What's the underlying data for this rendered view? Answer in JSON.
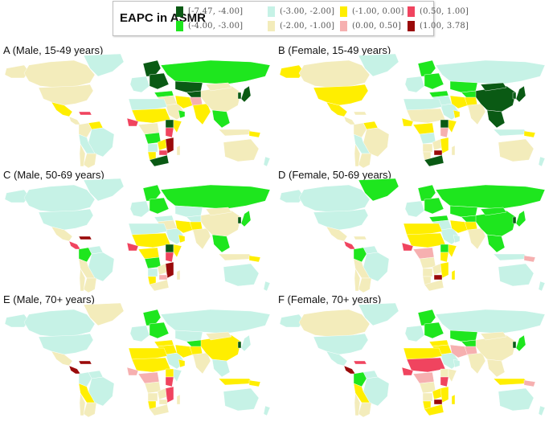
{
  "legend": {
    "title": "EAPC in ASMR",
    "items": [
      {
        "label": "[-7.47, -4.00]",
        "color": "#0a5a14"
      },
      {
        "label": "(-4.00, -3.00]",
        "color": "#1ee61e"
      },
      {
        "label": "(-3.00, -2.00]",
        "color": "#c6f2e6"
      },
      {
        "label": "(-2.00, -1.00]",
        "color": "#f3ecbb"
      },
      {
        "label": "(-1.00, 0.00]",
        "color": "#ffee00"
      },
      {
        "label": "(0.00, 0.50]",
        "color": "#f6b0b0"
      },
      {
        "label": "(0.50, 1.00]",
        "color": "#f0445f"
      },
      {
        "label": "(1.00, 3.78]",
        "color": "#9a0a0a"
      }
    ]
  },
  "panels": [
    {
      "id": "A",
      "label": "A (Male, 15-49  years)"
    },
    {
      "id": "B",
      "label": "B (Female, 15-49  years)"
    },
    {
      "id": "C",
      "label": "C (Male, 50-69  years)"
    },
    {
      "id": "D",
      "label": "D (Female, 50-69  years)"
    },
    {
      "id": "E",
      "label": "E (Male, 70+  years)"
    },
    {
      "id": "F",
      "label": "F (Female, 70+  years)"
    }
  ],
  "chart_data": {
    "type": "heatmap",
    "subtype": "choropleth-world-map",
    "title": "EAPC in ASMR",
    "legend_bins": [
      "[-7.47, -4.00]",
      "(-4.00, -3.00]",
      "(-3.00, -2.00]",
      "(-2.00, -1.00]",
      "(-1.00, 0.00]",
      "(0.00, 0.50]",
      "(0.50, 1.00]",
      "(1.00, 3.78]"
    ],
    "range": [
      -7.47,
      3.78
    ],
    "panels": [
      {
        "label": "A (Male, 15-49  years)",
        "regions": {
          "canada": 3,
          "alaska": 3,
          "usa": 3,
          "greenland": 2,
          "mexico": 4,
          "central_america": 3,
          "caribbean": 6,
          "venezuela": 4,
          "colombia": 3,
          "brazil": 2,
          "peru_bolivia": 2,
          "argentina": 3,
          "chile": 3,
          "west_europe": 2,
          "scandinavia": 0,
          "east_europe": 0,
          "russia": 1,
          "kazakhstan": 0,
          "central_asia": 0,
          "turkey": 1,
          "middle_east": 3,
          "arabia": 3,
          "oman": 1,
          "iran": 4,
          "pakistan_afghan": 5,
          "india": 4,
          "china": 3,
          "mongolia": 3,
          "japan": 0,
          "korea": 0,
          "se_asia": 1,
          "indonesia": 3,
          "png": 4,
          "australia": 3,
          "nz": 2,
          "north_africa": 2,
          "sahel": 4,
          "west_africa_coast": 6,
          "central_africa": 3,
          "ethiopia": 0,
          "horn": 4,
          "kenya": 6,
          "congo": 1,
          "angola": 2,
          "zambia": 4,
          "namibia": 4,
          "mozambique": 7,
          "zimbabwe": 6,
          "south_africa": 0,
          "madagascar": 3
        }
      },
      {
        "label": "B (Female, 15-49  years)",
        "regions": {
          "canada": 3,
          "alaska": 4,
          "usa": 4,
          "greenland": 2,
          "mexico": 4,
          "central_america": 3,
          "caribbean": 3,
          "venezuela": 4,
          "colombia": 3,
          "brazil": 3,
          "peru_bolivia": 2,
          "argentina": 3,
          "chile": 3,
          "west_europe": 2,
          "scandinavia": 1,
          "east_europe": 1,
          "russia": 2,
          "kazakhstan": 1,
          "central_asia": 1,
          "turkey": 1,
          "middle_east": 2,
          "arabia": 2,
          "oman": 4,
          "iran": 4,
          "pakistan_afghan": 4,
          "india": 3,
          "china": 0,
          "mongolia": 0,
          "japan": 0,
          "korea": 0,
          "se_asia": 0,
          "indonesia": 2,
          "png": 4,
          "australia": 3,
          "nz": 2,
          "north_africa": 2,
          "sahel": 3,
          "west_africa_coast": 4,
          "central_africa": 4,
          "ethiopia": 0,
          "horn": 4,
          "kenya": 5,
          "congo": 2,
          "angola": 3,
          "zambia": 3,
          "namibia": 3,
          "mozambique": 4,
          "zimbabwe": 7,
          "south_africa": 0,
          "madagascar": 3
        }
      },
      {
        "label": "C (Male, 50-69  years)",
        "regions": {
          "canada": 2,
          "alaska": 2,
          "usa": 2,
          "greenland": 2,
          "mexico": 3,
          "central_america": 6,
          "caribbean": 7,
          "venezuela": 2,
          "colombia": 1,
          "brazil": 2,
          "peru_bolivia": 3,
          "argentina": 3,
          "chile": 3,
          "west_europe": 2,
          "scandinavia": 1,
          "east_europe": 1,
          "russia": 1,
          "kazakhstan": 2,
          "central_asia": 2,
          "turkey": 2,
          "middle_east": 3,
          "arabia": 2,
          "oman": 4,
          "iran": 4,
          "pakistan_afghan": 4,
          "india": 3,
          "china": 3,
          "mongolia": 3,
          "japan": 1,
          "korea": 0,
          "se_asia": 1,
          "indonesia": 3,
          "png": 4,
          "australia": 2,
          "nz": 2,
          "north_africa": 2,
          "sahel": 4,
          "west_africa_coast": 6,
          "central_africa": 4,
          "ethiopia": 0,
          "horn": 4,
          "kenya": 6,
          "congo": 1,
          "angola": 2,
          "zambia": 3,
          "namibia": 4,
          "mozambique": 7,
          "zimbabwe": 5,
          "south_africa": 3,
          "madagascar": 3
        }
      },
      {
        "label": "D (Female, 50-69  years)",
        "regions": {
          "canada": 2,
          "alaska": 2,
          "usa": 2,
          "greenland": 1,
          "mexico": 3,
          "central_america": 6,
          "caribbean": 3,
          "venezuela": 2,
          "colombia": 1,
          "brazil": 2,
          "peru_bolivia": 3,
          "argentina": 3,
          "chile": 3,
          "west_europe": 2,
          "scandinavia": 1,
          "east_europe": 1,
          "russia": 1,
          "kazakhstan": 1,
          "central_asia": 1,
          "turkey": 1,
          "middle_east": 2,
          "arabia": 2,
          "oman": 2,
          "iran": 4,
          "pakistan_afghan": 4,
          "india": 3,
          "china": 1,
          "mongolia": 1,
          "japan": 1,
          "korea": 0,
          "se_asia": 1,
          "indonesia": 2,
          "png": 5,
          "australia": 2,
          "nz": 2,
          "north_africa": 4,
          "sahel": 4,
          "west_africa_coast": 6,
          "central_africa": 5,
          "ethiopia": 1,
          "horn": 4,
          "kenya": 4,
          "congo": 3,
          "angola": 3,
          "zambia": 3,
          "namibia": 3,
          "mozambique": 4,
          "zimbabwe": 7,
          "south_africa": 3,
          "madagascar": 4
        }
      },
      {
        "label": "E (Male, 70+  years)",
        "regions": {
          "canada": 2,
          "alaska": 2,
          "usa": 2,
          "greenland": 3,
          "mexico": 3,
          "central_america": 7,
          "caribbean": 7,
          "venezuela": 2,
          "colombia": 2,
          "brazil": 2,
          "peru_bolivia": 4,
          "argentina": 3,
          "chile": 3,
          "west_europe": 2,
          "scandinavia": 1,
          "east_europe": 1,
          "russia": 2,
          "kazakhstan": 2,
          "central_asia": 1,
          "turkey": 4,
          "middle_east": 4,
          "arabia": 2,
          "oman": 4,
          "iran": 4,
          "pakistan_afghan": 4,
          "india": 3,
          "china": 4,
          "mongolia": 3,
          "japan": 2,
          "korea": 0,
          "se_asia": 2,
          "indonesia": 4,
          "png": 4,
          "australia": 2,
          "nz": 2,
          "north_africa": 4,
          "sahel": 4,
          "west_africa_coast": 5,
          "central_africa": 5,
          "ethiopia": 4,
          "horn": 2,
          "kenya": 6,
          "congo": 3,
          "angola": 3,
          "zambia": 3,
          "namibia": 4,
          "mozambique": 6,
          "zimbabwe": 3,
          "south_africa": 3,
          "madagascar": 3
        }
      },
      {
        "label": "F (Female, 70+  years)",
        "regions": {
          "canada": 3,
          "alaska": 2,
          "usa": 2,
          "greenland": 2,
          "mexico": 2,
          "central_america": 7,
          "caribbean": 6,
          "venezuela": 2,
          "colombia": 1,
          "brazil": 2,
          "peru_bolivia": 4,
          "argentina": 3,
          "chile": 3,
          "west_europe": 2,
          "scandinavia": 1,
          "east_europe": 1,
          "russia": 2,
          "kazakhstan": 1,
          "central_asia": 1,
          "turkey": 4,
          "middle_east": 4,
          "arabia": 2,
          "oman": 2,
          "iran": 5,
          "pakistan_afghan": 5,
          "india": 3,
          "china": 3,
          "mongolia": 3,
          "japan": 1,
          "korea": 0,
          "se_asia": 3,
          "indonesia": 4,
          "png": 5,
          "australia": 2,
          "nz": 2,
          "north_africa": 4,
          "sahel": 6,
          "west_africa_coast": 6,
          "central_africa": 5,
          "ethiopia": 3,
          "horn": 3,
          "kenya": 6,
          "congo": 3,
          "angola": 3,
          "zambia": 4,
          "namibia": 4,
          "mozambique": 4,
          "zimbabwe": 7,
          "south_africa": 4,
          "madagascar": 4
        }
      }
    ]
  }
}
